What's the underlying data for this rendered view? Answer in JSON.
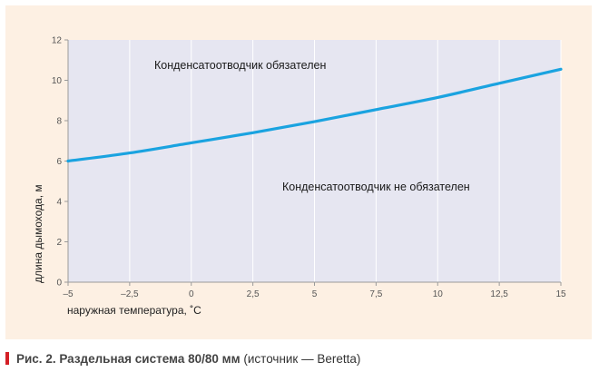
{
  "colors": {
    "frame_bg": "#fdf0e3",
    "plot_bg": "#e6e6f1",
    "line": "#1aa3e0",
    "caption_marker": "#d41f26"
  },
  "chart_data": {
    "type": "line",
    "xlabel": "наружная температура, ˚С",
    "ylabel": "длина дымохода, м",
    "xlim": [
      -5,
      15
    ],
    "ylim": [
      0,
      12
    ],
    "x_ticks": [
      -5,
      -2.5,
      0,
      2.5,
      5,
      7.5,
      10,
      12.5,
      15
    ],
    "x_tick_labels": [
      "–5",
      "–2,5",
      "0",
      "2,5",
      "5",
      "7,5",
      "10",
      "12,5",
      "15"
    ],
    "y_ticks": [
      0,
      2,
      4,
      6,
      8,
      10,
      12
    ],
    "y_tick_labels": [
      "0",
      "2",
      "4",
      "6",
      "8",
      "10",
      "12"
    ],
    "grid": "vertical",
    "series": [
      {
        "x": [
          -5,
          -2.5,
          0,
          2.5,
          5,
          7.5,
          10,
          12.5,
          15
        ],
        "y": [
          6.0,
          6.4,
          6.9,
          7.4,
          7.95,
          8.55,
          9.15,
          9.85,
          10.55
        ]
      }
    ],
    "annotations": [
      "Конденсатоотводчик обязателен",
      "Конденсатоотводчик не обязателен"
    ]
  },
  "caption": {
    "strong": "Рис. 2. Раздельная система 80/80 мм",
    "source": "(источник — Beretta)"
  }
}
